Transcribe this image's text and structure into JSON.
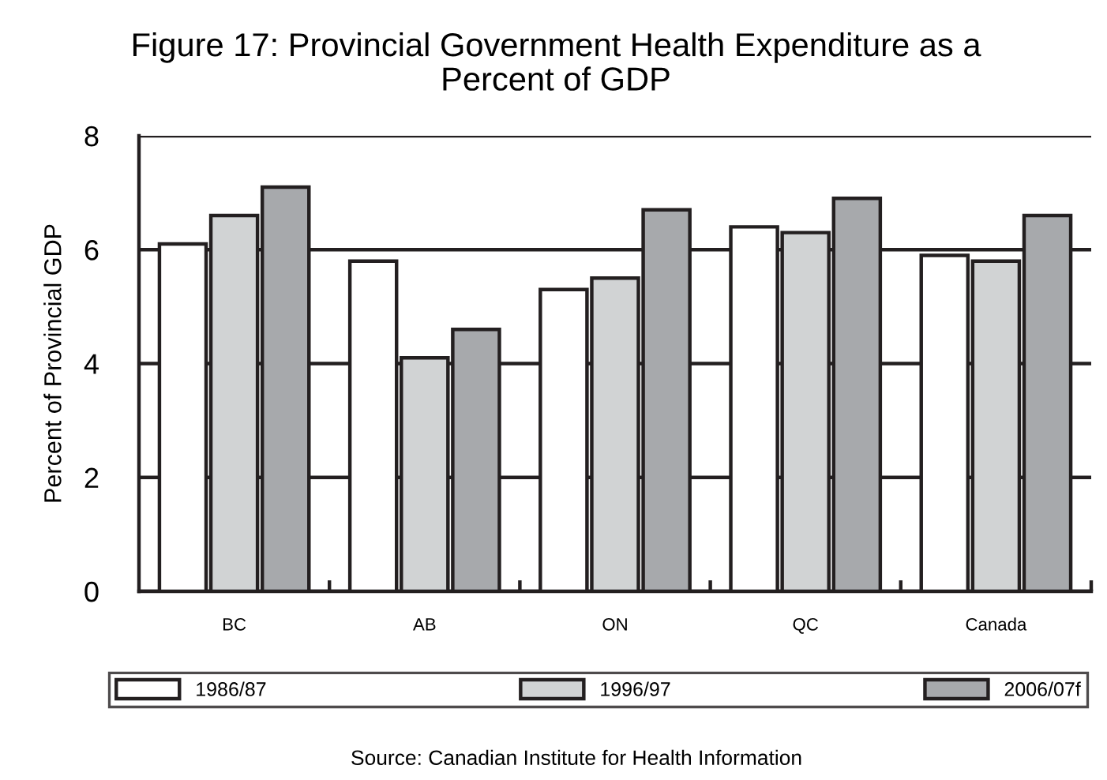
{
  "chart_data": {
    "type": "bar",
    "title": "Figure 17: Provincial Government Health Expenditure as a\nPercent of GDP",
    "ylabel": "Percent of Provincial GDP",
    "categories": [
      "BC",
      "AB",
      "ON",
      "QC",
      "Canada"
    ],
    "series": [
      {
        "name": "1986/87",
        "color": "#ffffff",
        "values": [
          6.1,
          5.8,
          5.3,
          6.4,
          5.9
        ]
      },
      {
        "name": "1996/97",
        "color": "#d1d3d4",
        "values": [
          6.6,
          4.1,
          5.5,
          6.3,
          5.8
        ]
      },
      {
        "name": "2006/07f",
        "color": "#a7a9ac",
        "values": [
          7.1,
          4.6,
          6.7,
          6.9,
          6.6
        ]
      }
    ],
    "ylim": [
      0,
      8
    ],
    "yticks": [
      0,
      2,
      4,
      6,
      8
    ],
    "grid": "y",
    "legend": "bottom",
    "annotations": [
      "Source: Canadian Institute for Health Information"
    ]
  }
}
